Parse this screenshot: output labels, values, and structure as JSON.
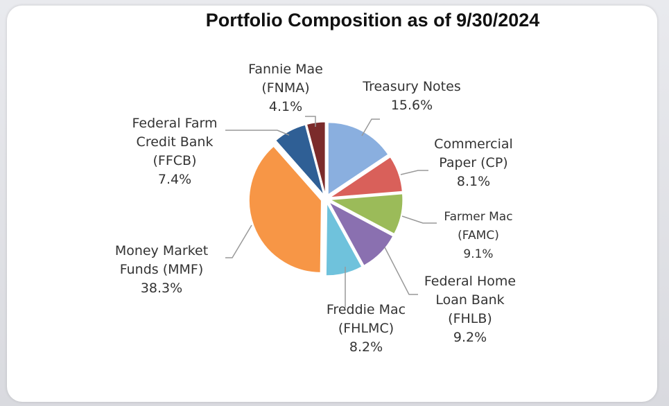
{
  "chart_data": {
    "type": "pie",
    "title": "Portfolio Composition as of  9/30/2024",
    "categories": [
      "Treasury Notes",
      "Commercial Paper (CP)",
      "Farmer Mac (FAMC)",
      "Federal Home Loan Bank (FHLB)",
      "Freddie Mac (FHLMC)",
      "Money Market Funds (MMF)",
      "Federal Farm Credit Bank (FFCB)",
      "Fannie Mae (FNMA)"
    ],
    "values": [
      15.6,
      8.1,
      9.1,
      9.2,
      8.2,
      38.3,
      7.4,
      4.1
    ],
    "value_labels": [
      "15.6%",
      "8.1%",
      "9.1%",
      "9.2%",
      "8.2%",
      "38.3%",
      "7.4%",
      "4.1%"
    ],
    "colors": [
      "#8aafdf",
      "#d9605a",
      "#9bbb59",
      "#8a70b0",
      "#6fc2dc",
      "#f79646",
      "#2f5f95",
      "#7b2b2b"
    ]
  }
}
